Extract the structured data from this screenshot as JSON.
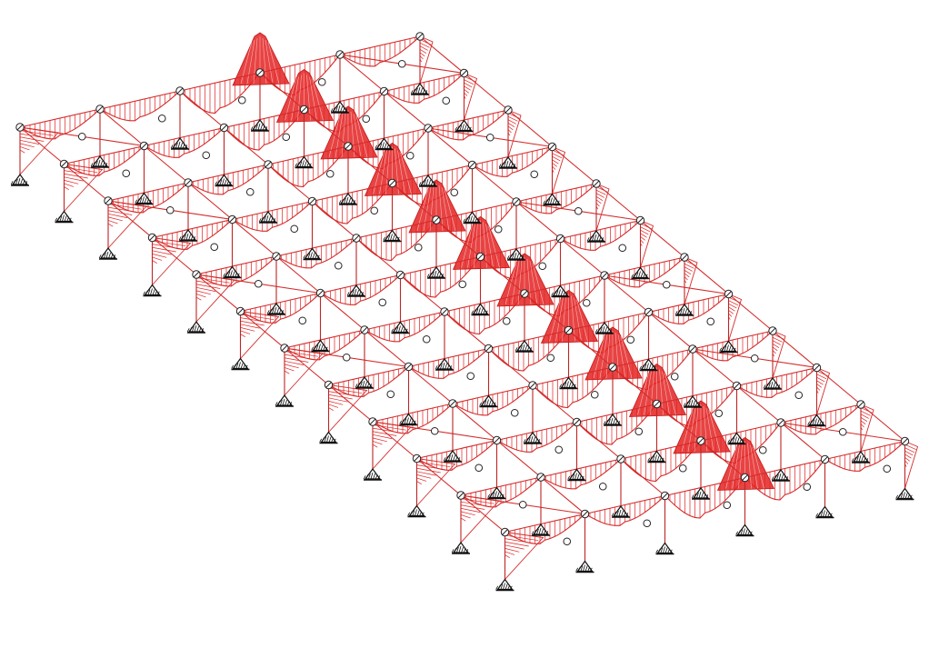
{
  "diagram": {
    "kind": "structural-frame-moment-diagram",
    "frames": 12,
    "bays": 5,
    "colors": {
      "member": "#d42a2a",
      "diagram_fill": "#e02020",
      "node": "#222222",
      "support": "#111111",
      "background": "#ffffff"
    },
    "icons": {
      "support": "pinned-support-icon",
      "node": "hinge-node-icon"
    }
  }
}
